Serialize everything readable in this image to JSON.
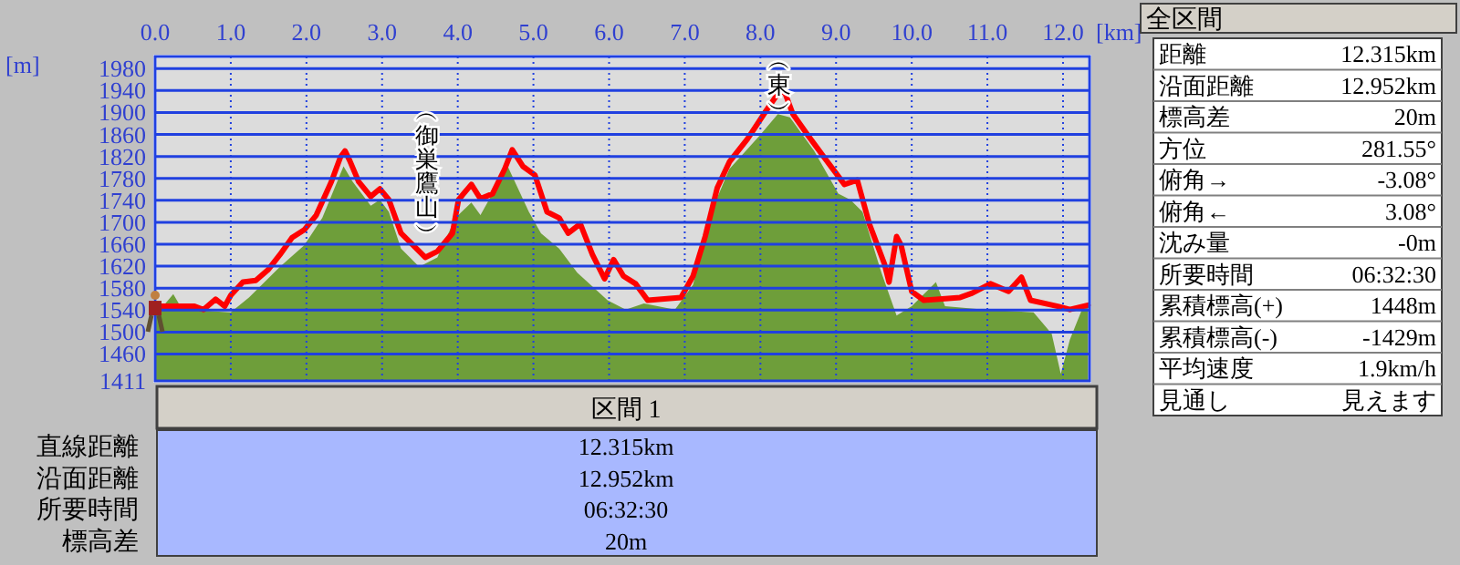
{
  "chart_data": [
    {
      "type": "area",
      "xlabel": "[km]",
      "ylabel": "[m]",
      "xlim": [
        0,
        12.35
      ],
      "ylim": [
        1411,
        2002
      ],
      "xticks": [
        {
          "value": 0,
          "label": "0.0"
        },
        {
          "value": 1,
          "label": "1.0"
        },
        {
          "value": 2,
          "label": "2.0"
        },
        {
          "value": 3,
          "label": "3.0"
        },
        {
          "value": 4,
          "label": "4.0"
        },
        {
          "value": 5,
          "label": "5.0"
        },
        {
          "value": 6,
          "label": "6.0"
        },
        {
          "value": 7,
          "label": "7.0"
        },
        {
          "value": 8,
          "label": "8.0"
        },
        {
          "value": 9,
          "label": "9.0"
        },
        {
          "value": 10,
          "label": "10.0"
        },
        {
          "value": 11,
          "label": "11.0"
        },
        {
          "value": 12,
          "label": "12.0"
        }
      ],
      "yticks": [
        1411,
        1460,
        1500,
        1540,
        1580,
        1620,
        1660,
        1700,
        1740,
        1780,
        1820,
        1860,
        1900,
        1940,
        1980
      ],
      "grid": true,
      "series": [
        {
          "type": "area",
          "color": "#6e9e3a",
          "x": [
            0,
            0.24,
            0.36,
            1.0,
            1.24,
            1.65,
            1.97,
            2.21,
            2.49,
            2.61,
            2.85,
            2.97,
            3.09,
            3.25,
            3.49,
            3.73,
            3.97,
            4.18,
            4.3,
            4.66,
            4.94,
            5.1,
            5.34,
            5.58,
            5.98,
            6.22,
            6.46,
            6.87,
            7.11,
            7.35,
            7.59,
            7.99,
            8.23,
            8.39,
            8.71,
            9.03,
            9.19,
            9.35,
            9.6,
            9.8,
            10.0,
            10.32,
            10.44,
            10.96,
            11.61,
            11.85,
            11.97,
            12.09,
            12.25,
            12.33
          ],
          "values": [
            1530,
            1569,
            1541,
            1536,
            1563,
            1619,
            1658,
            1708,
            1802,
            1774,
            1730,
            1741,
            1719,
            1652,
            1619,
            1636,
            1708,
            1736,
            1713,
            1802,
            1719,
            1680,
            1652,
            1608,
            1558,
            1541,
            1552,
            1541,
            1586,
            1719,
            1797,
            1858,
            1897,
            1891,
            1830,
            1752,
            1741,
            1719,
            1608,
            1530,
            1547,
            1591,
            1547,
            1541,
            1536,
            1497,
            1424,
            1486,
            1541,
            1547
          ]
        },
        {
          "type": "line",
          "color": "#ff0000",
          "x": [
            0,
            0.52,
            0.64,
            0.8,
            0.92,
            1.0,
            1.16,
            1.33,
            1.49,
            1.65,
            1.81,
            1.97,
            2.13,
            2.33,
            2.45,
            2.51,
            2.57,
            2.69,
            2.85,
            2.97,
            3.09,
            3.25,
            3.41,
            3.57,
            3.73,
            3.93,
            4.01,
            4.18,
            4.3,
            4.46,
            4.62,
            4.72,
            4.86,
            5.02,
            5.18,
            5.34,
            5.46,
            5.62,
            5.78,
            5.94,
            6.06,
            6.19,
            6.35,
            6.51,
            6.95,
            7.11,
            7.27,
            7.43,
            7.59,
            7.83,
            8.07,
            8.22,
            8.31,
            8.43,
            8.63,
            8.87,
            9.11,
            9.28,
            9.44,
            9.64,
            9.7,
            9.8,
            9.86,
            10.0,
            10.16,
            10.64,
            10.8,
            11.04,
            11.28,
            11.45,
            11.57,
            11.93,
            12.09,
            12.33
          ],
          "values": [
            1547,
            1547,
            1541,
            1560,
            1547,
            1567,
            1591,
            1594,
            1613,
            1641,
            1672,
            1686,
            1713,
            1774,
            1819,
            1830,
            1813,
            1774,
            1747,
            1761,
            1741,
            1680,
            1658,
            1636,
            1647,
            1680,
            1741,
            1769,
            1743,
            1752,
            1797,
            1832,
            1802,
            1786,
            1719,
            1708,
            1680,
            1697,
            1641,
            1597,
            1632,
            1602,
            1588,
            1558,
            1563,
            1602,
            1674,
            1763,
            1810,
            1852,
            1902,
            1932,
            1941,
            1897,
            1858,
            1813,
            1769,
            1777,
            1697,
            1624,
            1591,
            1674,
            1658,
            1574,
            1558,
            1563,
            1571,
            1588,
            1574,
            1600,
            1558,
            1547,
            1541,
            1549
          ]
        }
      ],
      "annotations": [
        "︵御巣鷹山︶",
        "︵東︶"
      ]
    },
    {
      "type": "other",
      "title": "全区間",
      "categories": [
        "距離",
        "沿面距離",
        "標高差",
        "方位",
        "俯角→",
        "俯角←",
        "沈み量",
        "所要時間",
        "累積標高(+)",
        "累積標高(-)",
        "平均速度",
        "見通し"
      ],
      "value_labels": [
        "12.315km",
        "12.952km",
        "20m",
        "281.55°",
        "-3.08°",
        "3.08°",
        "-0m",
        "06:32:30",
        "1448m",
        "-1429m",
        "1.9km/h",
        "見えます"
      ]
    },
    {
      "type": "other",
      "title": "区間 1",
      "categories": [
        "直線距離",
        "沿面距離",
        "所要時間",
        "標高差"
      ],
      "value_labels": [
        "12.315km",
        "12.952km",
        "06:32:30",
        "20m"
      ]
    }
  ]
}
